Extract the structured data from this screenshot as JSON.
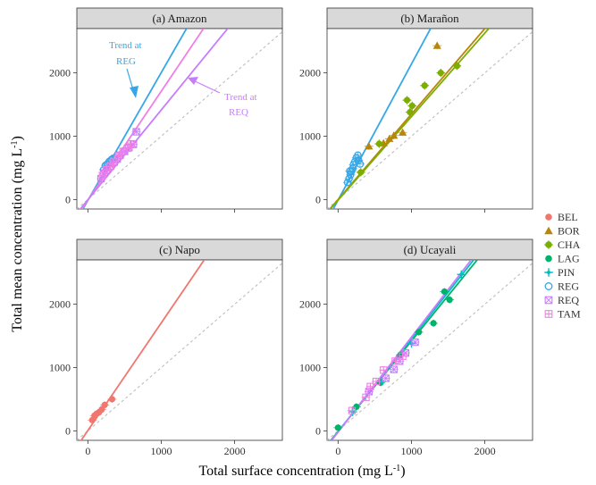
{
  "figure": {
    "xlabel_main": "Total surface concentration (mg L",
    "xlabel_sup": "-1",
    "xlabel_end": ")",
    "ylabel_main": "Total mean concentration  (mg L",
    "ylabel_sup": "-1",
    "ylabel_end": ")"
  },
  "series_colors": {
    "BEL": "#f0766e",
    "BOR": "#b8860b",
    "CHA": "#7cae00",
    "LAG": "#00b36b",
    "PIN": "#00bfc4",
    "REG": "#35a7e8",
    "REQ": "#c77cff",
    "TAM": "#f27ee4"
  },
  "legend": {
    "items": [
      {
        "code": "BEL",
        "shape": "circle"
      },
      {
        "code": "BOR",
        "shape": "triangle"
      },
      {
        "code": "CHA",
        "shape": "plus-circle"
      },
      {
        "code": "LAG",
        "shape": "circle"
      },
      {
        "code": "PIN",
        "shape": "plus-dot"
      },
      {
        "code": "REG",
        "shape": "open-circle"
      },
      {
        "code": "REQ",
        "shape": "square-cross"
      },
      {
        "code": "TAM",
        "shape": "square-plus"
      }
    ]
  },
  "chart_data": [
    {
      "type": "scatter",
      "title": "(a) Amazon",
      "xlim": [
        -150,
        2650
      ],
      "ylim": [
        -150,
        2700
      ],
      "xticks": [
        0,
        1000,
        2000
      ],
      "yticks": [
        0,
        1000,
        2000
      ],
      "fits": [
        {
          "series": "REG",
          "slope": 2.02,
          "intercept": -15
        },
        {
          "series": "TAM",
          "slope": 1.72,
          "intercept": -10
        },
        {
          "series": "REQ",
          "slope": 1.42,
          "intercept": -5
        }
      ],
      "series": [
        {
          "name": "REG",
          "points": [
            [
              215,
              470
            ],
            [
              240,
              540
            ],
            [
              265,
              560
            ],
            [
              290,
              600
            ],
            [
              320,
              630
            ],
            [
              345,
              650
            ]
          ]
        },
        {
          "name": "REQ",
          "points": [
            [
              180,
              330
            ],
            [
              220,
              410
            ],
            [
              265,
              470
            ],
            [
              310,
              530
            ],
            [
              360,
              590
            ],
            [
              400,
              640
            ],
            [
              440,
              700
            ],
            [
              500,
              760
            ],
            [
              560,
              820
            ],
            [
              620,
              870
            ],
            [
              660,
              1070
            ]
          ]
        },
        {
          "name": "TAM",
          "points": [
            [
              200,
              380
            ],
            [
              250,
              470
            ],
            [
              300,
              520
            ],
            [
              350,
              600
            ],
            [
              420,
              690
            ],
            [
              480,
              760
            ],
            [
              540,
              810
            ],
            [
              590,
              880
            ]
          ]
        }
      ],
      "annotations": [
        {
          "text": "Trend at",
          "text2": "REG",
          "series": "REG"
        },
        {
          "text": "Trend at",
          "text2": "REQ",
          "series": "REQ"
        }
      ]
    },
    {
      "type": "scatter",
      "title": "(b) Marañon",
      "xlim": [
        -150,
        2650
      ],
      "ylim": [
        -150,
        2700
      ],
      "xticks": [
        0,
        1000,
        2000
      ],
      "yticks": [
        0,
        1000,
        2000
      ],
      "fits": [
        {
          "series": "REG",
          "slope": 2.15,
          "intercept": -10
        },
        {
          "series": "BOR",
          "slope": 1.35,
          "intercept": 0
        },
        {
          "series": "CHA",
          "slope": 1.32,
          "intercept": -10
        }
      ],
      "series": [
        {
          "name": "REG",
          "points": [
            [
              130,
              270
            ],
            [
              150,
              330
            ],
            [
              170,
              390
            ],
            [
              180,
              440
            ],
            [
              200,
              490
            ],
            [
              210,
              550
            ],
            [
              230,
              600
            ],
            [
              250,
              660
            ],
            [
              270,
              700
            ],
            [
              280,
              620
            ],
            [
              160,
              450
            ],
            [
              300,
              560
            ]
          ]
        },
        {
          "name": "BOR",
          "points": [
            [
              420,
              840
            ],
            [
              620,
              890
            ],
            [
              700,
              960
            ],
            [
              760,
              1010
            ],
            [
              880,
              1060
            ],
            [
              1350,
              2430
            ]
          ]
        },
        {
          "name": "CHA",
          "points": [
            [
              310,
              430
            ],
            [
              560,
              880
            ],
            [
              980,
              1380
            ],
            [
              940,
              1570
            ],
            [
              1180,
              1800
            ],
            [
              1400,
              2000
            ],
            [
              1620,
              2110
            ],
            [
              1010,
              1480
            ]
          ]
        }
      ]
    },
    {
      "type": "scatter",
      "title": "(c) Napo",
      "xlim": [
        -150,
        2650
      ],
      "ylim": [
        -150,
        2700
      ],
      "xticks": [
        0,
        1000,
        2000
      ],
      "yticks": [
        0,
        1000,
        2000
      ],
      "fits": [
        {
          "series": "BEL",
          "slope": 1.7,
          "intercept": 5
        }
      ],
      "series": [
        {
          "name": "BEL",
          "points": [
            [
              60,
              170
            ],
            [
              90,
              240
            ],
            [
              120,
              270
            ],
            [
              150,
              290
            ],
            [
              190,
              340
            ],
            [
              230,
              410
            ],
            [
              330,
              500
            ]
          ]
        }
      ]
    },
    {
      "type": "scatter",
      "title": "(d) Ucayali",
      "xlim": [
        -150,
        2650
      ],
      "ylim": [
        -150,
        2700
      ],
      "xticks": [
        0,
        1000,
        2000
      ],
      "yticks": [
        0,
        1000,
        2000
      ],
      "fits": [
        {
          "series": "LAG",
          "slope": 1.43,
          "intercept": -10
        },
        {
          "series": "PIN",
          "slope": 1.47,
          "intercept": -15
        },
        {
          "series": "REQ",
          "slope": 1.5,
          "intercept": -20
        }
      ],
      "series": [
        {
          "name": "LAG",
          "points": [
            [
              0,
              50
            ],
            [
              250,
              380
            ],
            [
              580,
              760
            ],
            [
              1100,
              1560
            ],
            [
              1300,
              1700
            ],
            [
              1450,
              2200
            ],
            [
              1520,
              2070
            ],
            [
              850,
              1200
            ]
          ]
        },
        {
          "name": "PIN",
          "points": [
            [
              200,
              300
            ],
            [
              600,
              780
            ],
            [
              1000,
              1380
            ],
            [
              1680,
              2470
            ]
          ]
        },
        {
          "name": "REQ",
          "points": [
            [
              420,
              620
            ],
            [
              650,
              830
            ],
            [
              760,
              970
            ],
            [
              840,
              1100
            ],
            [
              920,
              1230
            ],
            [
              1050,
              1400
            ]
          ]
        },
        {
          "name": "TAM",
          "points": [
            [
              190,
              320
            ],
            [
              380,
              530
            ],
            [
              440,
              700
            ],
            [
              520,
              780
            ],
            [
              780,
              1100
            ],
            [
              880,
              1180
            ],
            [
              620,
              960
            ]
          ]
        }
      ]
    }
  ]
}
